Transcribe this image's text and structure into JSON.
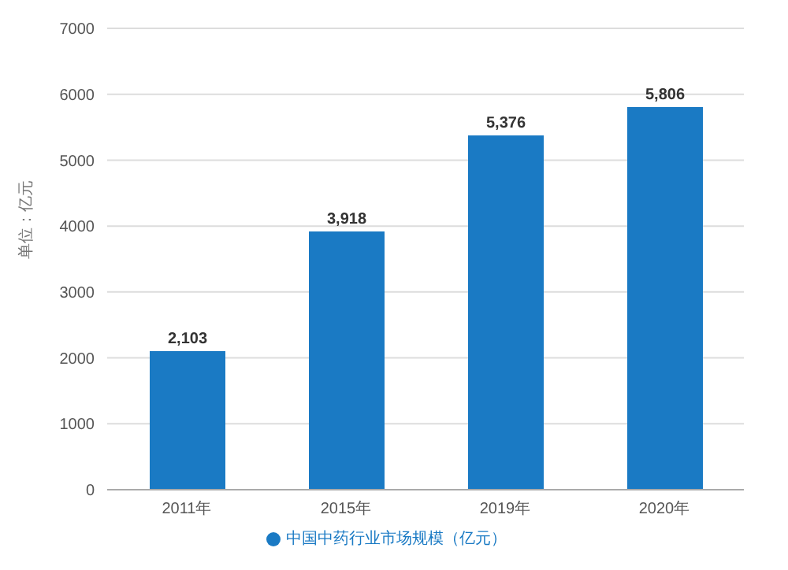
{
  "chart_data": {
    "type": "bar",
    "ylabel": "单位：亿元",
    "categories": [
      "2011年",
      "2015年",
      "2019年",
      "2020年"
    ],
    "series": [
      {
        "name": "中国中药行业市场规模（亿元）",
        "color": "#1a7ac4",
        "values": [
          2103,
          3918,
          5376,
          5806
        ],
        "value_labels": [
          "2,103",
          "3,918",
          "5,376",
          "5,806"
        ]
      }
    ],
    "ylim": [
      0,
      7000
    ],
    "yticks": [
      0,
      1000,
      2000,
      3000,
      4000,
      5000,
      6000,
      7000
    ],
    "grid": "y",
    "legend": "bottom"
  }
}
